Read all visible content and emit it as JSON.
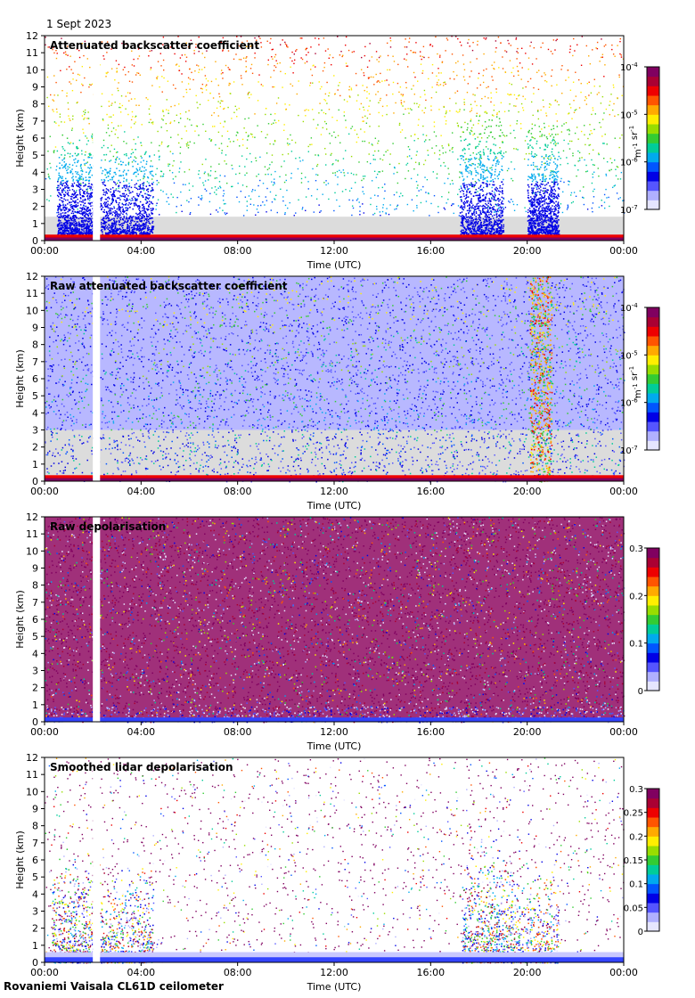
{
  "date": "1 Sept 2023",
  "footer": "Rovaniemi Vaisala CL61D ceilometer",
  "colors": {
    "background": "#ffffff",
    "missing": "#dddddd",
    "colormap": [
      "#e6e6ff",
      "#b0b0ff",
      "#5555ff",
      "#0000e6",
      "#0055ff",
      "#00aaee",
      "#00cc99",
      "#33cc33",
      "#99dd00",
      "#ffee00",
      "#ffaa00",
      "#ff5500",
      "#ee0000",
      "#aa0033",
      "#800060"
    ]
  },
  "chart_data": [
    {
      "type": "heatmap",
      "title": "Attenuated backscatter coefficient",
      "xlabel": "Time (UTC)",
      "ylabel": "Height (km)",
      "xticks": [
        "00:00",
        "04:00",
        "08:00",
        "12:00",
        "16:00",
        "20:00",
        "00:00"
      ],
      "yticks": [
        "0",
        "1",
        "2",
        "3",
        "4",
        "5",
        "6",
        "7",
        "8",
        "9",
        "10",
        "11",
        "12"
      ],
      "ylim": [
        0,
        12
      ],
      "xlim_hours": [
        0,
        24
      ],
      "colorbar": {
        "scale": "log",
        "ticks": [
          "10^-7",
          "10^-6",
          "10^-5",
          "10^-4"
        ],
        "label": "m^-1 sr^-1"
      },
      "features": {
        "data_gap_hours": [
          2.0,
          2.3
        ],
        "plume_regions": [
          {
            "t_start": 0.5,
            "t_end": 2.0,
            "top_km": 6.0
          },
          {
            "t_start": 2.3,
            "t_end": 4.5,
            "top_km": 5.5
          },
          {
            "t_start": 17.2,
            "t_end": 19.0,
            "top_km": 7.5
          },
          {
            "t_start": 20.0,
            "t_end": 21.3,
            "top_km": 7.0
          }
        ]
      }
    },
    {
      "type": "heatmap",
      "title": "Raw attenuated backscatter coefficient",
      "xlabel": "Time (UTC)",
      "ylabel": "Height (km)",
      "xticks": [
        "00:00",
        "04:00",
        "08:00",
        "12:00",
        "16:00",
        "20:00",
        "00:00"
      ],
      "yticks": [
        "0",
        "1",
        "2",
        "3",
        "4",
        "5",
        "6",
        "7",
        "8",
        "9",
        "10",
        "11",
        "12"
      ],
      "ylim": [
        0,
        12
      ],
      "xlim_hours": [
        0,
        24
      ],
      "colorbar": {
        "scale": "log",
        "ticks": [
          "10^-7",
          "10^-6",
          "10^-5",
          "10^-4"
        ],
        "label": "m^-1 sr^-1"
      },
      "features": {
        "data_gap_hours": [
          2.0,
          2.3
        ]
      }
    },
    {
      "type": "heatmap",
      "title": "Raw depolarisation",
      "xlabel": "Time (UTC)",
      "ylabel": "Height (km)",
      "xticks": [
        "00:00",
        "04:00",
        "08:00",
        "12:00",
        "16:00",
        "20:00",
        "00:00"
      ],
      "yticks": [
        "0",
        "1",
        "2",
        "3",
        "4",
        "5",
        "6",
        "7",
        "8",
        "9",
        "10",
        "11",
        "12"
      ],
      "ylim": [
        0,
        12
      ],
      "xlim_hours": [
        0,
        24
      ],
      "colorbar": {
        "scale": "linear",
        "ticks": [
          "0",
          "0.1",
          "0.2",
          "0.3"
        ],
        "range": [
          0,
          0.3
        ]
      },
      "features": {
        "data_gap_hours": [
          2.0,
          2.3
        ]
      }
    },
    {
      "type": "heatmap",
      "title": "Smoothed lidar depolarisation",
      "xlabel": "Time (UTC)",
      "ylabel": "Height (km)",
      "xticks": [
        "00:00",
        "04:00",
        "08:00",
        "12:00",
        "16:00",
        "20:00",
        "00:00"
      ],
      "yticks": [
        "0",
        "1",
        "2",
        "3",
        "4",
        "5",
        "6",
        "7",
        "8",
        "9",
        "10",
        "11",
        "12"
      ],
      "ylim": [
        0,
        12
      ],
      "xlim_hours": [
        0,
        24
      ],
      "colorbar": {
        "scale": "linear",
        "ticks": [
          "0",
          "0.05",
          "0.1",
          "0.15",
          "0.2",
          "0.25",
          "0.3"
        ],
        "range": [
          0,
          0.3
        ]
      },
      "features": {
        "data_gap_hours": [
          2.0,
          2.3
        ]
      }
    }
  ]
}
